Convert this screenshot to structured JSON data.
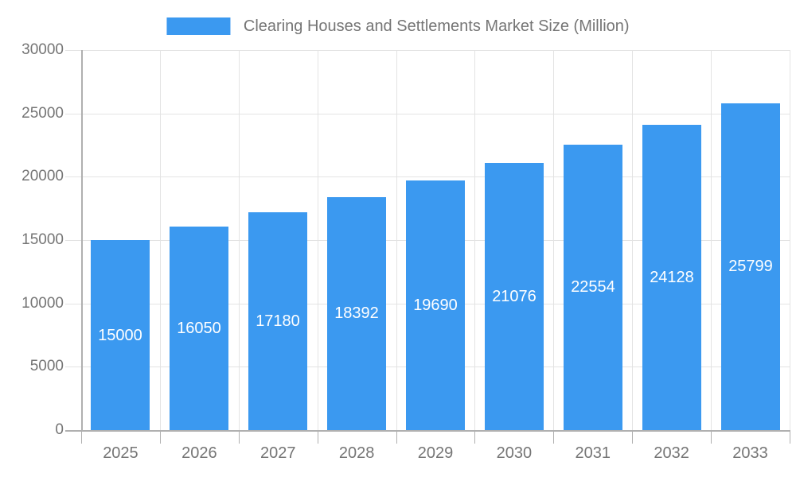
{
  "legend": {
    "label": "Clearing Houses and Settlements Market Size (Million)"
  },
  "colors": {
    "bar": "#3b99f0",
    "grid": "#e3e3e3",
    "axis": "#b0b0b0",
    "tick": "#b0b0b0",
    "label_text": "#757575",
    "value_text": "#ffffff",
    "background": "#ffffff"
  },
  "chart_data": {
    "type": "bar",
    "title": "Clearing Houses and Settlements Market Size (Million)",
    "categories": [
      "2025",
      "2026",
      "2027",
      "2028",
      "2029",
      "2030",
      "2031",
      "2032",
      "2033"
    ],
    "values": [
      15000,
      16050,
      17180,
      18392,
      19690,
      21076,
      22554,
      24128,
      25799
    ],
    "xlabel": "",
    "ylabel": "",
    "ylim": [
      0,
      30000
    ],
    "yticks": [
      0,
      5000,
      10000,
      15000,
      20000,
      25000,
      30000
    ],
    "grid": true,
    "legend_position": "top",
    "bar_label_style": "white-inside-centered"
  }
}
